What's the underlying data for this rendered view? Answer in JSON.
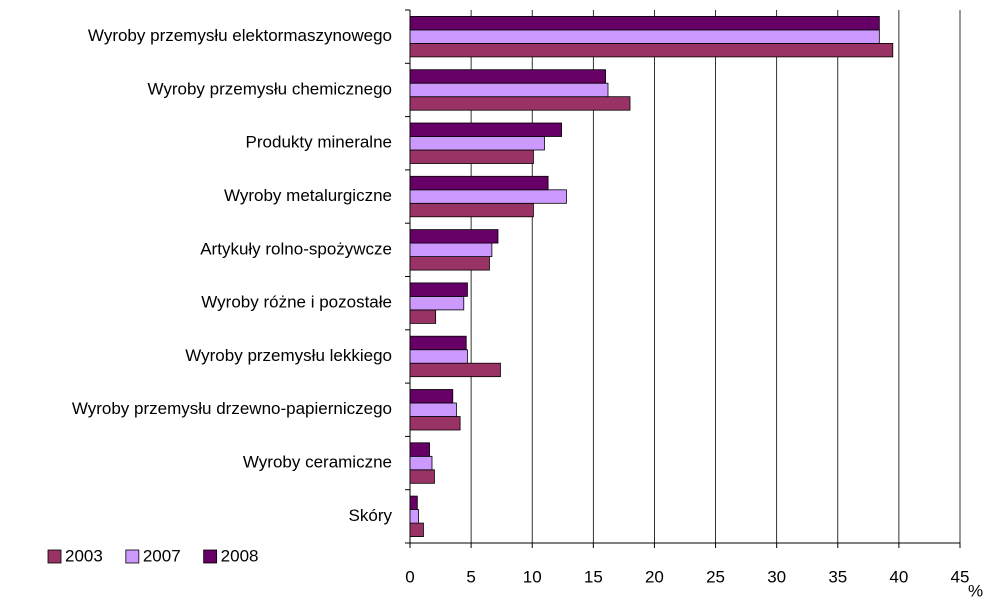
{
  "chart_data": {
    "type": "bar",
    "orientation": "horizontal",
    "categories": [
      "Wyroby przemysłu elektormaszynowego",
      "Wyroby przemysłu chemicznego",
      "Produkty mineralne",
      "Wyroby metalurgiczne",
      "Artykuły rolno-spożywcze",
      "Wyroby różne i pozostałe",
      "Wyroby przemysłu lekkiego",
      "Wyroby przemysłu drzewno-papierniczego",
      "Wyroby ceramiczne",
      "Skóry"
    ],
    "series": [
      {
        "name": "2003",
        "color": "#993366",
        "values": [
          39.5,
          18.0,
          10.1,
          10.1,
          6.5,
          2.1,
          7.4,
          4.1,
          2.0,
          1.1
        ]
      },
      {
        "name": "2007",
        "color": "#cc99ff",
        "values": [
          38.4,
          16.2,
          11.0,
          12.8,
          6.7,
          4.4,
          4.7,
          3.8,
          1.8,
          0.7
        ]
      },
      {
        "name": "2008",
        "color": "#660066",
        "values": [
          38.4,
          16.0,
          12.4,
          11.3,
          7.2,
          4.7,
          4.6,
          3.5,
          1.6,
          0.6
        ]
      }
    ],
    "x_label": "%",
    "xlim": [
      0,
      45
    ],
    "xticks": [
      0,
      5,
      10,
      15,
      20,
      25,
      30,
      35,
      40,
      45
    ],
    "grid": true,
    "legend": "bottom-left"
  }
}
